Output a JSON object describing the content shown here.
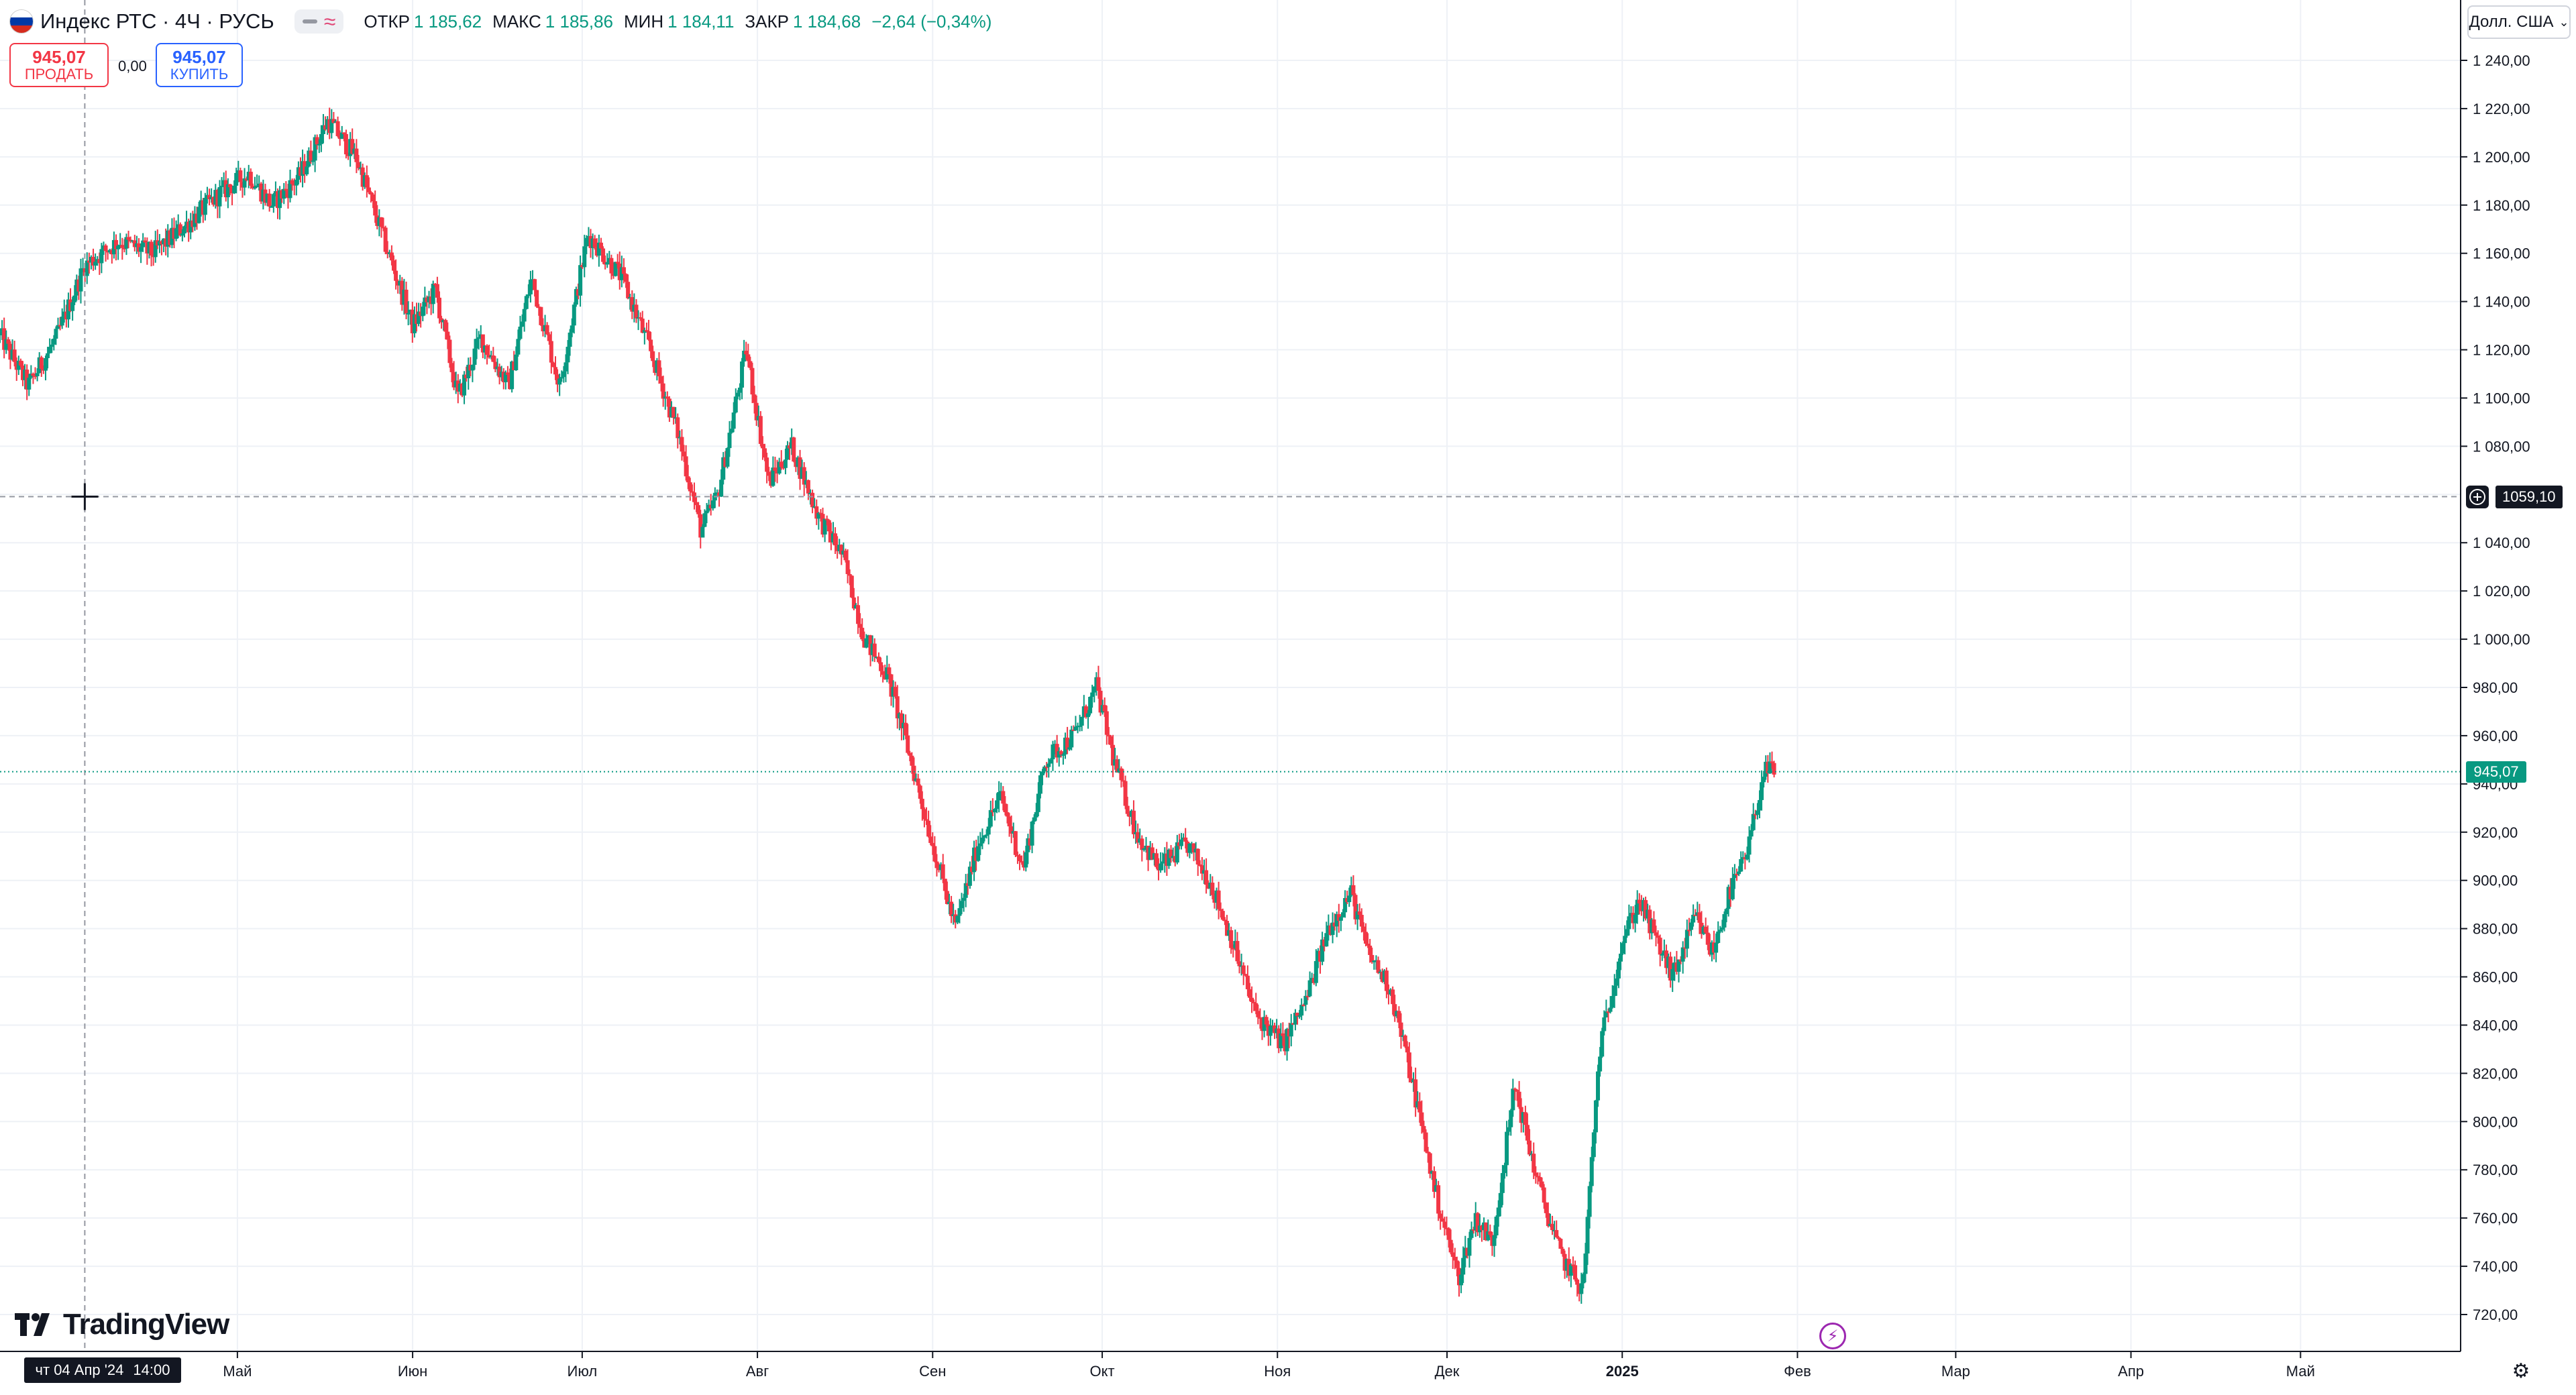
{
  "legend": {
    "symbol": "Индекс РТС · 4Ч · РУСЬ",
    "open_label": "ОТКР",
    "open_value": "1 185,62",
    "high_label": "МАКС",
    "high_value": "1 185,86",
    "low_label": "МИН",
    "low_value": "1 184,11",
    "close_label": "ЗАКР",
    "close_value": "1 184,68",
    "change": "−2,64 (−0,34%)"
  },
  "trade": {
    "sell_price": "945,07",
    "sell_label": "ПРОДАТЬ",
    "spread": "0,00",
    "buy_price": "945,07",
    "buy_label": "КУПИТЬ"
  },
  "currency": "Долл. США",
  "brand": "TradingView",
  "crosshair": {
    "date_label": "чт 04 Апр '24",
    "time_label": "14:00",
    "price_label": "1059,10"
  },
  "last_price_label": "945,07",
  "colors": {
    "up": "#089981",
    "down": "#f23645",
    "grid": "#f0f3fa",
    "text": "#131722",
    "accent": "#2962ff"
  },
  "icons": {
    "flag": "russia-flag-icon",
    "crosshair": "crosshair-icon",
    "settings": "gear-icon",
    "lightning": "lightning-icon"
  },
  "chart_data": {
    "type": "candlestick",
    "title": "Индекс РТС · 4Ч · РУСЬ",
    "ylim": [
      710,
      1250
    ],
    "y_ticks": [
      "1 240,00",
      "1 220,00",
      "1 200,00",
      "1 180,00",
      "1 160,00",
      "1 140,00",
      "1 120,00",
      "1 100,00",
      "1 080,00",
      "1 040,00",
      "1 020,00",
      "1 000,00",
      "980,00",
      "960,00",
      "940,00",
      "920,00",
      "900,00",
      "880,00",
      "860,00",
      "840,00",
      "820,00",
      "800,00",
      "780,00",
      "760,00",
      "740,00",
      "720,00"
    ],
    "y_tick_values": [
      1240,
      1220,
      1200,
      1180,
      1160,
      1140,
      1120,
      1100,
      1080,
      1040,
      1020,
      1000,
      980,
      960,
      940,
      920,
      900,
      880,
      860,
      840,
      820,
      800,
      780,
      760,
      740,
      720
    ],
    "x_ticks": [
      "Май",
      "Июн",
      "Июл",
      "Авг",
      "Сен",
      "Окт",
      "Ноя",
      "Дек",
      "2025",
      "Фев",
      "Мар",
      "Апр",
      "Май"
    ],
    "x_tick_dates": [
      "2024-05-01",
      "2024-06-01",
      "2024-07-01",
      "2024-08-01",
      "2024-09-01",
      "2024-10-01",
      "2024-11-01",
      "2024-12-01",
      "2025-01-01",
      "2025-02-01",
      "2025-03-01",
      "2025-04-01",
      "2025-05-01"
    ],
    "x_range": [
      "2024-03-20",
      "2025-05-26"
    ],
    "last_price": 945.07,
    "crosshair_price": 1059.1,
    "crosshair_date": "2024-04-04",
    "path": [
      [
        "2024-03-20",
        1126
      ],
      [
        "2024-03-25",
        1105
      ],
      [
        "2024-03-30",
        1125
      ],
      [
        "2024-04-04",
        1155
      ],
      [
        "2024-04-10",
        1165
      ],
      [
        "2024-04-16",
        1160
      ],
      [
        "2024-04-22",
        1172
      ],
      [
        "2024-04-28",
        1185
      ],
      [
        "2024-05-03",
        1193
      ],
      [
        "2024-05-07",
        1180
      ],
      [
        "2024-05-12",
        1192
      ],
      [
        "2024-05-17",
        1215
      ],
      [
        "2024-05-22",
        1200
      ],
      [
        "2024-05-27",
        1165
      ],
      [
        "2024-06-01",
        1130
      ],
      [
        "2024-06-05",
        1145
      ],
      [
        "2024-06-09",
        1100
      ],
      [
        "2024-06-13",
        1125
      ],
      [
        "2024-06-18",
        1105
      ],
      [
        "2024-06-22",
        1150
      ],
      [
        "2024-06-27",
        1105
      ],
      [
        "2024-07-02",
        1168
      ],
      [
        "2024-07-08",
        1150
      ],
      [
        "2024-07-13",
        1120
      ],
      [
        "2024-07-18",
        1085
      ],
      [
        "2024-07-22",
        1045
      ],
      [
        "2024-07-25",
        1060
      ],
      [
        "2024-07-30",
        1120
      ],
      [
        "2024-08-03",
        1065
      ],
      [
        "2024-08-07",
        1080
      ],
      [
        "2024-08-12",
        1050
      ],
      [
        "2024-08-16",
        1035
      ],
      [
        "2024-08-20",
        1000
      ],
      [
        "2024-08-24",
        985
      ],
      [
        "2024-08-27",
        960
      ],
      [
        "2024-09-01",
        915
      ],
      [
        "2024-09-05",
        880
      ],
      [
        "2024-09-09",
        915
      ],
      [
        "2024-09-13",
        935
      ],
      [
        "2024-09-17",
        905
      ],
      [
        "2024-09-21",
        950
      ],
      [
        "2024-09-26",
        960
      ],
      [
        "2024-09-30",
        980
      ],
      [
        "2024-10-03",
        950
      ],
      [
        "2024-10-07",
        920
      ],
      [
        "2024-10-11",
        905
      ],
      [
        "2024-10-16",
        915
      ],
      [
        "2024-10-20",
        900
      ],
      [
        "2024-10-24",
        875
      ],
      [
        "2024-10-28",
        845
      ],
      [
        "2024-11-02",
        832
      ],
      [
        "2024-11-06",
        850
      ],
      [
        "2024-11-10",
        880
      ],
      [
        "2024-11-14",
        895
      ],
      [
        "2024-11-17",
        870
      ],
      [
        "2024-11-21",
        855
      ],
      [
        "2024-11-25",
        815
      ],
      [
        "2024-11-29",
        770
      ],
      [
        "2024-12-03",
        735
      ],
      [
        "2024-12-06",
        760
      ],
      [
        "2024-12-09",
        750
      ],
      [
        "2024-12-13",
        815
      ],
      [
        "2024-12-17",
        775
      ],
      [
        "2024-12-21",
        745
      ],
      [
        "2024-12-25",
        730
      ],
      [
        "2024-12-28",
        830
      ],
      [
        "2025-01-01",
        875
      ],
      [
        "2025-01-04",
        892
      ],
      [
        "2025-01-07",
        875
      ],
      [
        "2025-01-10",
        860
      ],
      [
        "2025-01-14",
        885
      ],
      [
        "2025-01-17",
        870
      ],
      [
        "2025-01-20",
        895
      ],
      [
        "2025-01-23",
        910
      ],
      [
        "2025-01-26",
        945
      ],
      [
        "2025-01-28",
        945
      ]
    ]
  }
}
